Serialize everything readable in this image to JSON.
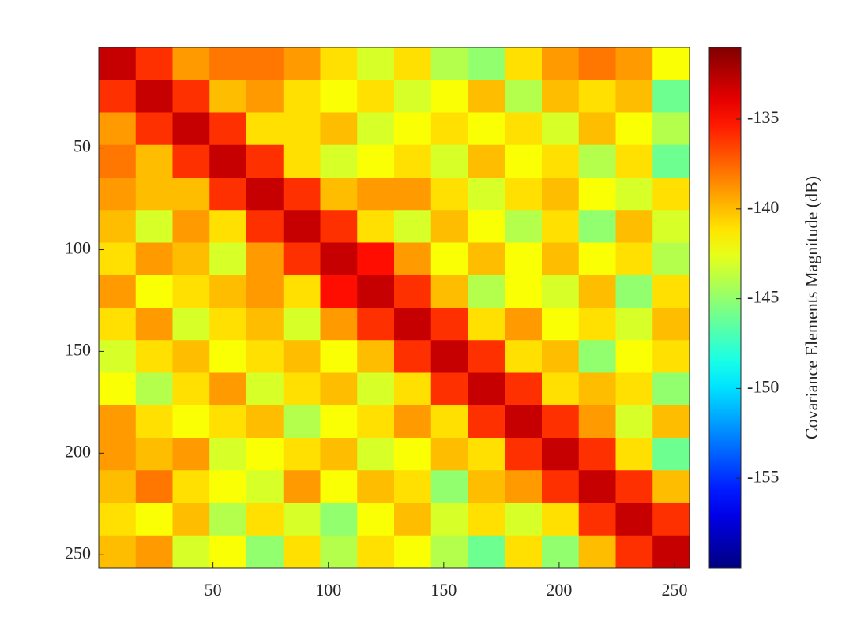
{
  "chart_data": {
    "type": "heatmap",
    "colormap": "jet",
    "xlim": [
      0.5,
      256.5
    ],
    "ylim": [
      0.5,
      256.5
    ],
    "y_reversed": true,
    "xticks": [
      50,
      100,
      150,
      200,
      250
    ],
    "yticks": [
      50,
      100,
      150,
      200,
      250
    ],
    "clim": [
      -160,
      -131
    ],
    "cticks": [
      -155,
      -150,
      -145,
      -140,
      -135
    ],
    "colorbar_label": "Covariance Elements Magnitude (dB)",
    "values": [
      [
        -133,
        -136,
        -139,
        -138,
        -138,
        -139,
        -141,
        -143,
        -141,
        -144,
        -145,
        -141,
        -139,
        -138,
        -139,
        -142
      ],
      [
        -136,
        -133,
        -136,
        -140,
        -139,
        -141,
        -142,
        -141,
        -143,
        -142,
        -140,
        -144,
        -140,
        -141,
        -140,
        -146
      ],
      [
        -139,
        -136,
        -133,
        -136,
        -141,
        -141,
        -140,
        -143,
        -142,
        -141,
        -142,
        -141,
        -143,
        -140,
        -142,
        -144
      ],
      [
        -138,
        -140,
        -136,
        -133,
        -136,
        -141,
        -143,
        -142,
        -141,
        -143,
        -140,
        -142,
        -141,
        -144,
        -141,
        -146
      ],
      [
        -139,
        -140,
        -140,
        -136,
        -133,
        -136,
        -140,
        -139,
        -139,
        -141,
        -143,
        -141,
        -140,
        -142,
        -143,
        -141
      ],
      [
        -140,
        -143,
        -139,
        -141,
        -136,
        -133,
        -136,
        -141,
        -143,
        -140,
        -142,
        -144,
        -141,
        -145,
        -140,
        -143
      ],
      [
        -141,
        -139,
        -140,
        -143,
        -139,
        -136,
        -133,
        -135,
        -139,
        -142,
        -140,
        -142,
        -140,
        -142,
        -141,
        -144
      ],
      [
        -139,
        -142,
        -141,
        -140,
        -139,
        -141,
        -135,
        -133,
        -136,
        -140,
        -144,
        -142,
        -143,
        -140,
        -145,
        -141
      ],
      [
        -141,
        -139,
        -143,
        -141,
        -140,
        -143,
        -139,
        -136,
        -133,
        -136,
        -141,
        -139,
        -142,
        -141,
        -143,
        -140
      ],
      [
        -143,
        -141,
        -140,
        -142,
        -141,
        -140,
        -142,
        -140,
        -136,
        -133,
        -136,
        -141,
        -140,
        -145,
        -142,
        -141
      ],
      [
        -142,
        -144,
        -141,
        -139,
        -143,
        -141,
        -140,
        -143,
        -141,
        -136,
        -133,
        -136,
        -141,
        -140,
        -141,
        -145
      ],
      [
        -139,
        -141,
        -142,
        -141,
        -140,
        -144,
        -142,
        -141,
        -139,
        -141,
        -136,
        -133,
        -136,
        -139,
        -143,
        -140
      ],
      [
        -139,
        -140,
        -139,
        -143,
        -142,
        -141,
        -140,
        -143,
        -142,
        -140,
        -141,
        -136,
        -133,
        -136,
        -141,
        -146
      ],
      [
        -140,
        -138,
        -141,
        -142,
        -143,
        -139,
        -142,
        -140,
        -141,
        -145,
        -140,
        -139,
        -136,
        -133,
        -136,
        -140
      ],
      [
        -141,
        -142,
        -140,
        -144,
        -141,
        -143,
        -145,
        -142,
        -140,
        -143,
        -141,
        -143,
        -141,
        -136,
        -133,
        -136
      ],
      [
        -140,
        -139,
        -143,
        -142,
        -145,
        -141,
        -144,
        -141,
        -142,
        -144,
        -146,
        -141,
        -145,
        -140,
        -136,
        -133
      ]
    ]
  }
}
